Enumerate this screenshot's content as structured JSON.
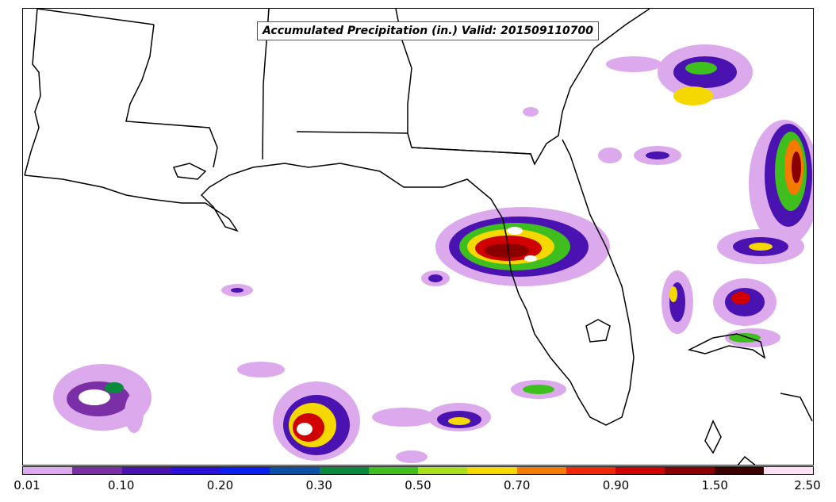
{
  "title": "Accumulated Precipitation (in.) Valid: 201509110700",
  "colorbar": {
    "colors": [
      "#dca9ec",
      "#7a2fa6",
      "#4a12b0",
      "#2a10d8",
      "#0b1ff0",
      "#0a4fa8",
      "#0a8a3c",
      "#3fbf1e",
      "#a8e01a",
      "#f5d800",
      "#f57a00",
      "#f02a00",
      "#d00000",
      "#8a0000",
      "#3c0000",
      "#ffe0f8"
    ],
    "tick_labels": [
      "0.01",
      "0.10",
      "0.20",
      "0.30",
      "0.50",
      "0.70",
      "0.90",
      "1.50",
      "2.50"
    ]
  },
  "colors": {
    "coast": "#000000",
    "frame": "#000000"
  }
}
